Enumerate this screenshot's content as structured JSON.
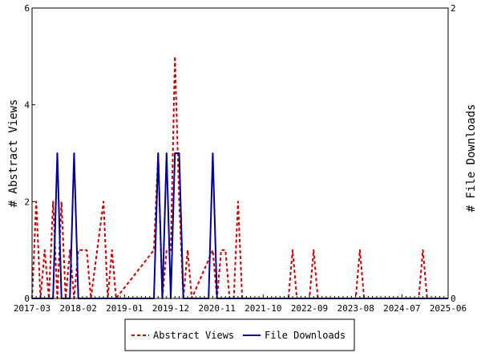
{
  "chart_data": {
    "type": "line",
    "ylabel_left": "# Abstract Views",
    "ylabel_right": "# File Downloads",
    "x_tick_labels": [
      "2017-03",
      "2018-02",
      "2019-01",
      "2019-12",
      "2020-11",
      "2021-10",
      "2022-09",
      "2023-08",
      "2024-07",
      "2025-06"
    ],
    "y_left_ticks": [
      "0",
      "2",
      "4",
      "6"
    ],
    "y_right_ticks": [
      "0",
      "2"
    ],
    "y_left_range": [
      0,
      6
    ],
    "y_right_range": [
      0,
      2
    ],
    "x_range_months": [
      "2017-03",
      "2025-06"
    ],
    "grid": false,
    "legend_position": "bottom-center",
    "series": [
      {
        "name": "Abstract Views",
        "axis": "left",
        "color": "#cc0000",
        "style": "dashed",
        "points": [
          [
            "2017-03",
            0
          ],
          [
            "2017-04",
            2
          ],
          [
            "2017-05",
            0
          ],
          [
            "2017-06",
            1
          ],
          [
            "2017-07",
            0
          ],
          [
            "2017-08",
            2
          ],
          [
            "2017-09",
            0
          ],
          [
            "2017-10",
            2
          ],
          [
            "2017-11",
            0
          ],
          [
            "2017-12",
            1
          ],
          [
            "2018-01",
            0
          ],
          [
            "2018-02",
            1
          ],
          [
            "2018-03",
            1
          ],
          [
            "2018-04",
            1
          ],
          [
            "2018-05",
            0
          ],
          [
            "2018-08",
            2
          ],
          [
            "2018-09",
            0
          ],
          [
            "2018-10",
            1
          ],
          [
            "2018-11",
            0
          ],
          [
            "2019-08",
            1
          ],
          [
            "2019-09",
            3
          ],
          [
            "2019-10",
            0
          ],
          [
            "2019-11",
            1
          ],
          [
            "2019-12",
            1
          ],
          [
            "2020-01",
            5
          ],
          [
            "2020-02",
            2
          ],
          [
            "2020-03",
            0
          ],
          [
            "2020-04",
            1
          ],
          [
            "2020-05",
            0
          ],
          [
            "2020-10",
            1
          ],
          [
            "2020-11",
            0
          ],
          [
            "2020-12",
            1
          ],
          [
            "2021-01",
            1
          ],
          [
            "2021-02",
            0
          ],
          [
            "2021-03",
            0
          ],
          [
            "2021-04",
            2
          ],
          [
            "2021-05",
            0
          ],
          [
            "2022-04",
            0
          ],
          [
            "2022-05",
            1
          ],
          [
            "2022-06",
            0
          ],
          [
            "2022-09",
            0
          ],
          [
            "2022-10",
            1
          ],
          [
            "2022-11",
            0
          ],
          [
            "2023-08",
            0
          ],
          [
            "2023-09",
            1
          ],
          [
            "2023-10",
            0
          ],
          [
            "2024-11",
            0
          ],
          [
            "2024-12",
            1
          ],
          [
            "2025-01",
            0
          ],
          [
            "2025-06",
            0
          ]
        ]
      },
      {
        "name": "File Downloads",
        "axis": "right",
        "color": "#000099",
        "style": "solid",
        "points": [
          [
            "2017-03",
            0
          ],
          [
            "2017-08",
            0
          ],
          [
            "2017-09",
            1
          ],
          [
            "2017-10",
            0
          ],
          [
            "2017-12",
            0
          ],
          [
            "2018-01",
            1
          ],
          [
            "2018-02",
            0
          ],
          [
            "2019-08",
            0
          ],
          [
            "2019-09",
            1
          ],
          [
            "2019-10",
            0
          ],
          [
            "2019-11",
            1
          ],
          [
            "2019-12",
            0
          ],
          [
            "2020-01",
            1
          ],
          [
            "2020-02",
            1
          ],
          [
            "2020-03",
            0
          ],
          [
            "2020-09",
            0
          ],
          [
            "2020-10",
            1
          ],
          [
            "2020-11",
            0
          ],
          [
            "2025-06",
            0
          ]
        ]
      }
    ]
  }
}
